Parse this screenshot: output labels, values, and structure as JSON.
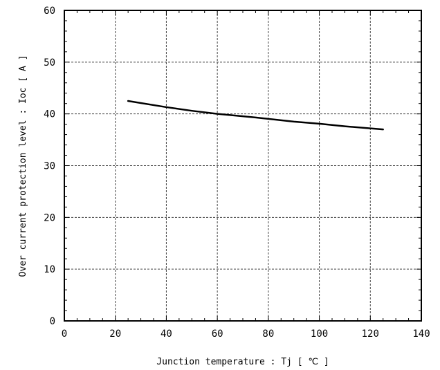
{
  "chart_data": {
    "type": "line",
    "title": "",
    "xlabel": "Junction temperature : Tj [ ℃ ]",
    "ylabel": "Over current protection level : Ioc [ A ]",
    "xlim": [
      0,
      140
    ],
    "ylim": [
      0,
      60
    ],
    "x_ticks": [
      0,
      20,
      40,
      60,
      80,
      100,
      120,
      140
    ],
    "y_ticks": [
      0,
      10,
      20,
      30,
      40,
      50,
      60
    ],
    "grid": true,
    "series": [
      {
        "x": [
          25,
          40,
          50,
          60,
          75,
          90,
          100,
          110,
          125
        ],
        "y": [
          42.5,
          41.3,
          40.6,
          40.0,
          39.3,
          38.5,
          38.1,
          37.6,
          37.0
        ]
      }
    ]
  }
}
